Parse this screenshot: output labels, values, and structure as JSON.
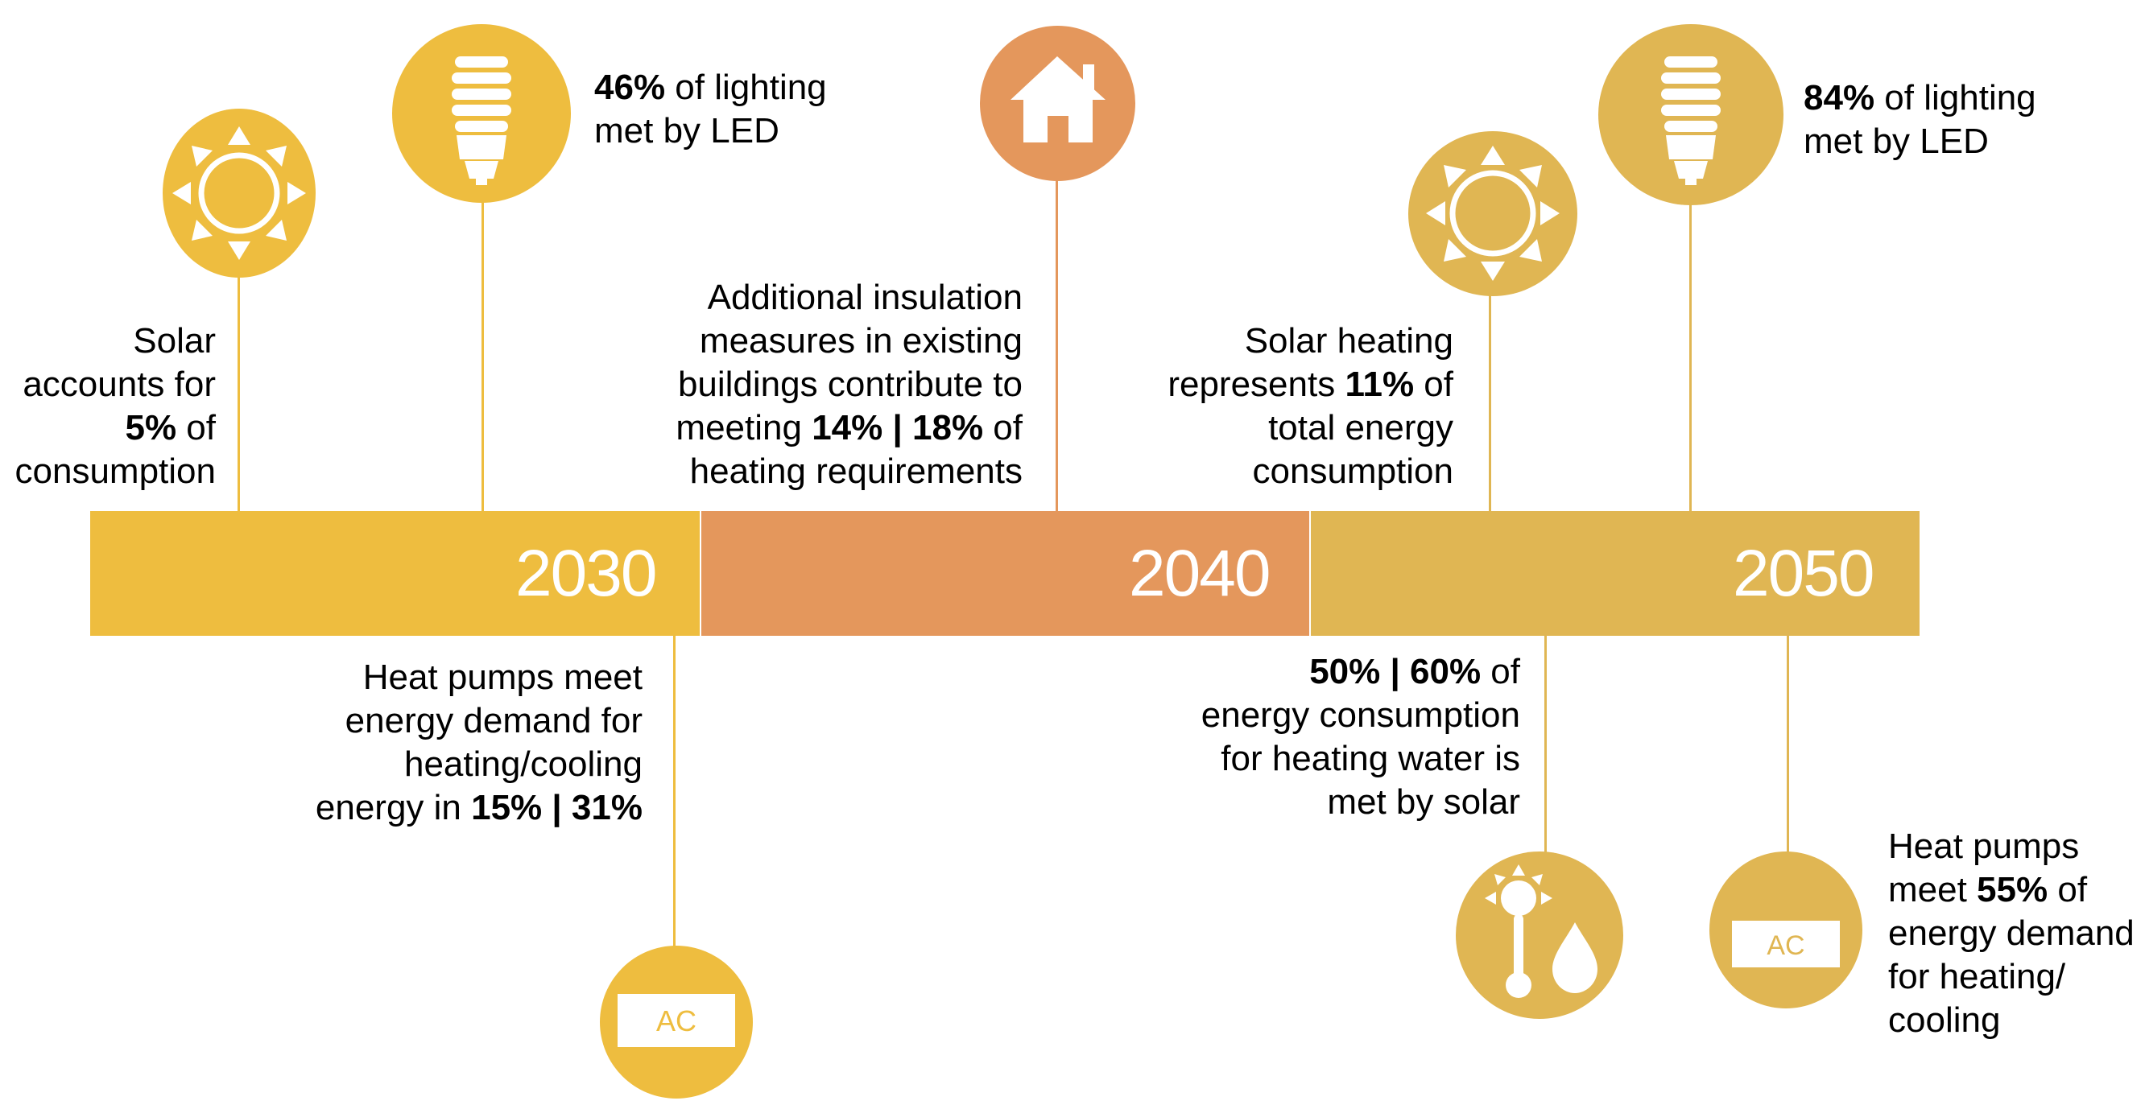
{
  "colors": {
    "gold": "#eebd3f",
    "orange": "#e4975c",
    "khaki": "#e0b653",
    "white": "#ffffff"
  },
  "timeline": [
    {
      "year": "2030",
      "color": "#eebd3f"
    },
    {
      "year": "2040",
      "color": "#e4975c"
    },
    {
      "year": "2050",
      "color": "#e0b653"
    }
  ],
  "milestones": {
    "solar_2030": {
      "icon": "sun-icon",
      "parts": [
        "Solar",
        "accounts for",
        "5%",
        " of",
        "consumption"
      ]
    },
    "led_2030": {
      "icon": "lightbulb-icon",
      "pct": "46%",
      "rest": " of lighting",
      "line2": "met by LED"
    },
    "heatpump_2030": {
      "icon": "air-conditioner-icon",
      "icon_label": "AC",
      "l1": "Heat pumps meet",
      "l2": "energy demand for",
      "l3": "heating/cooling",
      "l4a": "energy in ",
      "l4b": "15% | 31%"
    },
    "insulation_2040": {
      "icon": "house-icon",
      "l1": "Additional insulation",
      "l2": "measures in existing",
      "l3": "buildings contribute to",
      "l4a": "meeting ",
      "l4b": "14% | 18%",
      "l4c": " of",
      "l5": "heating requirements"
    },
    "solar_heating_2050": {
      "icon": "sun-icon",
      "l1": "Solar heating",
      "l2a": "represents ",
      "l2b": "11%",
      "l2c": " of",
      "l3": "total energy",
      "l4": "consumption"
    },
    "led_2050": {
      "icon": "lightbulb-icon",
      "pct": "84%",
      "rest": " of lighting",
      "line2": "met by LED"
    },
    "solar_water_2050": {
      "icon": "solar-water-heating-icon",
      "l1a": "50% | 60%",
      "l1b": " of",
      "l2": "energy consumption",
      "l3": "for heating water is",
      "l4": "met by solar"
    },
    "heatpump_2050": {
      "icon": "air-conditioner-icon",
      "icon_label": "AC",
      "l1": "Heat pumps",
      "l2a": "meet ",
      "l2b": "55%",
      "l2c": " of",
      "l3": "energy demand",
      "l4": "for heating/",
      "l5": "cooling"
    }
  }
}
